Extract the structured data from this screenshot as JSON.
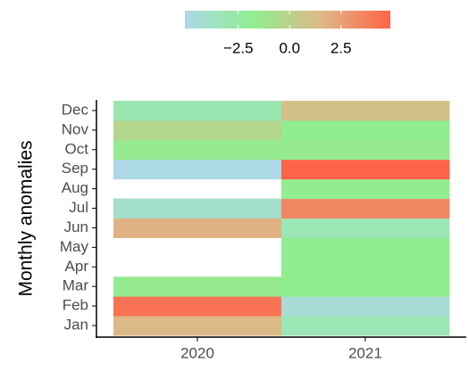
{
  "chart_data": {
    "type": "heatmap",
    "y_label": "Monthly anomalies",
    "x": [
      "2020",
      "2021"
    ],
    "y": [
      "Jan",
      "Feb",
      "Mar",
      "Apr",
      "May",
      "Jun",
      "Jul",
      "Aug",
      "Sep",
      "Oct",
      "Nov",
      "Dec"
    ],
    "values": [
      [
        1.5,
        -3.2
      ],
      [
        4.3,
        -4.5
      ],
      [
        -1.5,
        -1.8
      ],
      [
        null,
        -1.8
      ],
      [
        null,
        -1.8
      ],
      [
        1.8,
        -3.2
      ],
      [
        -4.0,
        3.5
      ],
      [
        null,
        -1.7
      ],
      [
        -5.1,
        4.9
      ],
      [
        -1.5,
        -1.5
      ],
      [
        -0.3,
        -1.8
      ],
      [
        -3.0,
        1.0
      ]
    ],
    "colorscale": [
      "#add8e6",
      "#90ee90",
      "#deb887",
      "#ff6347"
    ],
    "clim": [
      -5.1,
      4.9
    ],
    "cticks": [
      {
        "value": -2.5,
        "label": "−2.5"
      },
      {
        "value": 0,
        "label": "0.0"
      },
      {
        "value": 2.5,
        "label": "2.5"
      }
    ]
  }
}
